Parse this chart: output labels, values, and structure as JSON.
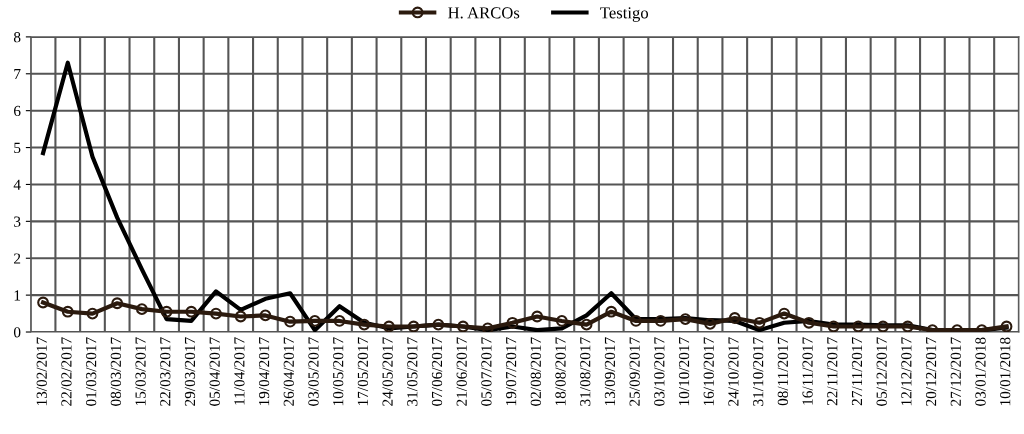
{
  "chart_data": {
    "type": "line",
    "categories": [
      "13/02/2017",
      "22/02/2017",
      "01/03/2017",
      "08/03/2017",
      "15/03/2017",
      "22/03/2017",
      "29/03/2017",
      "05/04/2017",
      "11/04/2017",
      "19/04/2017",
      "26/04/2017",
      "03/05/2017",
      "10/05/2017",
      "17/05/2017",
      "24/05/2017",
      "31/05/2017",
      "07/06/2017",
      "21/06/2017",
      "05/07/2017",
      "19/07/2017",
      "02/08/2017",
      "18/08/2017",
      "31/08/2017",
      "13/09/2017",
      "25/09/2017",
      "03/10/2017",
      "10/10/2017",
      "16/10/2017",
      "24/10/2017",
      "31/10/2017",
      "08/11/2017",
      "16/11/2017",
      "22/11/2017",
      "27/11/2017",
      "05/12/2017",
      "12/12/2017",
      "20/12/2017",
      "27/12/2017",
      "03/01/2018",
      "10/01/2018"
    ],
    "series": [
      {
        "name": "H. ARCOs",
        "color": "#2b1a0e",
        "marker": "circle",
        "values": [
          0.8,
          0.55,
          0.5,
          0.78,
          0.62,
          0.55,
          0.55,
          0.5,
          0.42,
          0.45,
          0.28,
          0.3,
          0.3,
          0.2,
          0.15,
          0.15,
          0.2,
          0.15,
          0.1,
          0.25,
          0.42,
          0.3,
          0.2,
          0.55,
          0.3,
          0.3,
          0.35,
          0.22,
          0.38,
          0.25,
          0.5,
          0.25,
          0.15,
          0.15,
          0.15,
          0.15,
          0.05,
          0.05,
          0.05,
          0.15
        ]
      },
      {
        "name": "Testigo",
        "color": "#000000",
        "marker": "none",
        "values": [
          4.85,
          7.3,
          4.75,
          3.1,
          1.7,
          0.35,
          0.3,
          1.1,
          0.6,
          0.9,
          1.05,
          0.05,
          0.7,
          0.25,
          0.1,
          0.15,
          0.2,
          0.15,
          0.05,
          0.15,
          0.05,
          0.1,
          0.45,
          1.05,
          0.35,
          0.35,
          0.38,
          0.32,
          0.3,
          0.05,
          0.25,
          0.3,
          0.2,
          0.2,
          0.18,
          0.18,
          0.05,
          0.05,
          0.05,
          0.12
        ]
      }
    ],
    "ylim": [
      0,
      8
    ],
    "yticks": [
      0,
      1,
      2,
      3,
      4,
      5,
      6,
      7,
      8
    ],
    "grid": true,
    "legend": "top"
  }
}
